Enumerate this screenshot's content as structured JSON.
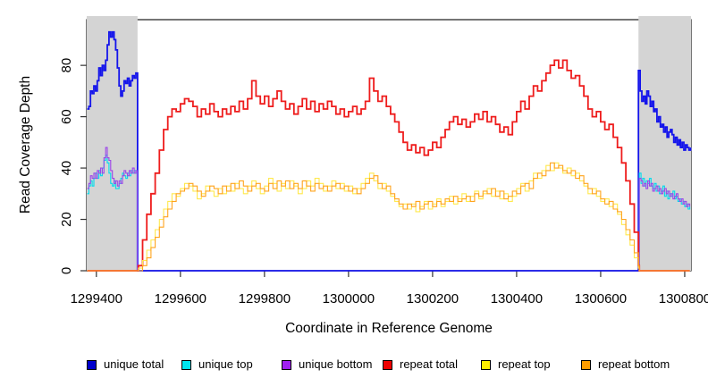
{
  "chart_data": {
    "type": "line",
    "style": "step-coverage-plot",
    "xlabel": "Coordinate in Reference Genome",
    "ylabel": "Read Coverage Depth",
    "xlim": [
      1299377,
      1300815
    ],
    "ylim": [
      0,
      97.8
    ],
    "xticks": [
      1299400,
      1299600,
      1299800,
      1300000,
      1300200,
      1300400,
      1300600,
      1300800
    ],
    "yticks": [
      0,
      20,
      40,
      60,
      80
    ],
    "grid": false,
    "background_color": "#ffffff",
    "shaded_region_color": "#d4d4d4",
    "shaded_regions": [
      {
        "x0": 1299377,
        "x1": 1299498
      },
      {
        "x0": 1300690,
        "x1": 1300815
      }
    ],
    "legend_position": "bottom",
    "legend": [
      {
        "label": "unique total",
        "color": "#0000cc"
      },
      {
        "label": "unique top",
        "color": "#00e5ee"
      },
      {
        "label": "unique bottom",
        "color": "#a020f0"
      },
      {
        "label": "repeat total",
        "color": "#ee0000"
      },
      {
        "label": "repeat top",
        "color": "#ffee00"
      },
      {
        "label": "repeat bottom",
        "color": "#ff9d00"
      }
    ],
    "series": [
      {
        "name": "unique total",
        "color": "#1414eb",
        "lw": 1.8,
        "parts": [
          [
            {
              "x0": 1299378,
              "dx": 4,
              "v": [
                63,
                64,
                70,
                69,
                72,
                70,
                74,
                79,
                76,
                80,
                78,
                82,
                88,
                93,
                91,
                93,
                90,
                86,
                79,
                72,
                68,
                70,
                74,
                73,
                75,
                72,
                74,
                76,
                75,
                77
              ]
            },
            {
              "x0": 1299498,
              "dx": 1190,
              "v": [
                0,
                0
              ]
            },
            {
              "x0": 1300690,
              "dx": 4,
              "v": [
                78,
                70,
                66,
                68,
                65,
                70,
                68,
                64,
                66,
                62,
                63,
                58,
                60,
                56,
                57,
                54,
                56,
                52,
                54,
                55,
                53,
                50,
                52,
                49,
                51,
                48,
                50,
                47,
                49,
                48,
                47,
                48
              ]
            }
          ]
        ]
      },
      {
        "name": "unique top",
        "color": "#00dcec",
        "lw": 1.1,
        "parts": [
          [
            {
              "x0": 1299378,
              "dx": 4,
              "v": [
                30,
                33,
                35,
                33,
                36,
                38,
                36,
                39,
                37,
                40,
                43,
                45,
                42,
                38,
                34,
                33,
                35,
                32,
                32,
                34,
                36,
                38,
                37,
                36,
                38,
                37,
                39,
                38,
                39,
                38
              ]
            },
            {
              "x0": 1299497,
              "dx": 1,
              "v": [
                0
              ]
            }
          ],
          [
            {
              "x0": 1300690,
              "dx": 1,
              "v": [
                0
              ]
            },
            {
              "x0": 1300692,
              "dx": 4,
              "v": [
                38,
                34,
                36,
                33,
                35,
                34,
                36,
                33,
                32,
                34,
                31,
                33,
                30,
                31,
                33,
                29,
                31,
                28,
                30,
                29,
                31,
                28,
                29,
                27,
                28,
                26,
                27,
                25,
                26,
                24,
                25
              ]
            }
          ]
        ]
      },
      {
        "name": "unique bottom",
        "color": "#9b45e8",
        "lw": 1.1,
        "parts": [
          [
            {
              "x0": 1299378,
              "dx": 4,
              "v": [
                32,
                34,
                37,
                36,
                38,
                36,
                39,
                38,
                40,
                38,
                44,
                48,
                44,
                43,
                39,
                36,
                34,
                35,
                33,
                35,
                34,
                37,
                39,
                38,
                37,
                39,
                38,
                40,
                38,
                39
              ]
            },
            {
              "x0": 1299497,
              "dx": 1,
              "v": [
                0
              ]
            }
          ],
          [
            {
              "x0": 1300690,
              "dx": 1,
              "v": [
                0
              ]
            },
            {
              "x0": 1300692,
              "dx": 4,
              "v": [
                36,
                35,
                33,
                34,
                32,
                35,
                33,
                34,
                31,
                32,
                33,
                31,
                32,
                30,
                31,
                32,
                30,
                31,
                29,
                30,
                28,
                29,
                30,
                28,
                27,
                28,
                26,
                27,
                25,
                26,
                25
              ]
            }
          ]
        ]
      },
      {
        "name": "repeat total",
        "color": "#ee1c1c",
        "lw": 1.8,
        "parts": [
          [
            {
              "x0": 1299378,
              "dx": 118,
              "v": [
                0,
                0
              ]
            },
            {
              "x0": 1299500,
              "dx": 10,
              "v": [
                2,
                12,
                22,
                30,
                38,
                47,
                55,
                60,
                63,
                62,
                65,
                67,
                66,
                64,
                60,
                63,
                61,
                65,
                62,
                60,
                63,
                61,
                64,
                62,
                66,
                63,
                67,
                74,
                68,
                65,
                68,
                64,
                67,
                70,
                66,
                63,
                65,
                61,
                64,
                67,
                63,
                66,
                62,
                65,
                63,
                66,
                64,
                61,
                63,
                60,
                62,
                64,
                61,
                63,
                66,
                75,
                70,
                66,
                68,
                64,
                61,
                58,
                54,
                50,
                47,
                49,
                46,
                48,
                45,
                47,
                50,
                48,
                52,
                55,
                58,
                60,
                57,
                59,
                56,
                58,
                61,
                59,
                62,
                58,
                60,
                57,
                54,
                56,
                53,
                58,
                62,
                66,
                63,
                68,
                72,
                70,
                74,
                77,
                80,
                82,
                79,
                82,
                78,
                75,
                76,
                72,
                68,
                63,
                60,
                62,
                58,
                55,
                57,
                52,
                48,
                42,
                35,
                26,
                15,
                2
              ]
            },
            {
              "x0": 1300692,
              "dx": 120,
              "v": [
                0,
                0
              ]
            }
          ]
        ]
      },
      {
        "name": "repeat top",
        "color": "#ffe94d",
        "lw": 1.1,
        "parts": [
          [
            {
              "x0": 1299378,
              "dx": 118,
              "v": [
                0,
                0
              ]
            },
            {
              "x0": 1299500,
              "dx": 10,
              "v": [
                1,
                4,
                8,
                12,
                16,
                20,
                24,
                27,
                30,
                29,
                32,
                34,
                33,
                31,
                28,
                30,
                33,
                31,
                29,
                32,
                30,
                33,
                31,
                34,
                32,
                30,
                33,
                35,
                32,
                30,
                33,
                36,
                34,
                31,
                34,
                32,
                35,
                33,
                30,
                32,
                35,
                33,
                36,
                34,
                31,
                33,
                35,
                32,
                34,
                31,
                33,
                30,
                32,
                34,
                36,
                38,
                35,
                32,
                34,
                31,
                29,
                27,
                25,
                26,
                24,
                26,
                23,
                25,
                27,
                24,
                26,
                28,
                25,
                27,
                29,
                26,
                28,
                30,
                27,
                29,
                31,
                28,
                30,
                32,
                29,
                31,
                28,
                30,
                27,
                29,
                32,
                34,
                31,
                35,
                38,
                36,
                39,
                41,
                39,
                42,
                40,
                38,
                40,
                37,
                38,
                35,
                33,
                30,
                32,
                29,
                27,
                28,
                25,
                26,
                22,
                18,
                14,
                10,
                5,
                1
              ]
            },
            {
              "x0": 1300692,
              "dx": 120,
              "v": [
                0,
                0
              ]
            }
          ]
        ]
      },
      {
        "name": "repeat bottom",
        "color": "#ffa41e",
        "lw": 1.1,
        "parts": [
          [
            {
              "x0": 1299378,
              "dx": 118,
              "v": [
                0,
                0
              ]
            },
            {
              "x0": 1299500,
              "dx": 10,
              "v": [
                0,
                2,
                5,
                9,
                13,
                17,
                21,
                24,
                27,
                30,
                31,
                32,
                34,
                33,
                31,
                29,
                31,
                33,
                32,
                30,
                33,
                31,
                34,
                32,
                35,
                33,
                31,
                33,
                34,
                32,
                31,
                34,
                32,
                35,
                33,
                35,
                32,
                34,
                32,
                35,
                33,
                31,
                34,
                32,
                33,
                31,
                33,
                34,
                32,
                33,
                31,
                32,
                30,
                32,
                34,
                36,
                37,
                34,
                32,
                33,
                30,
                28,
                26,
                24,
                26,
                25,
                27,
                24,
                26,
                27,
                25,
                27,
                26,
                28,
                27,
                29,
                27,
                28,
                29,
                27,
                30,
                29,
                31,
                30,
                32,
                29,
                31,
                28,
                29,
                31,
                30,
                33,
                34,
                32,
                36,
                38,
                37,
                39,
                42,
                40,
                41,
                39,
                38,
                39,
                36,
                37,
                34,
                32,
                30,
                31,
                28,
                26,
                27,
                24,
                23,
                20,
                16,
                12,
                7,
                2
              ]
            },
            {
              "x0": 1300692,
              "dx": 120,
              "v": [
                0,
                0
              ]
            }
          ]
        ]
      }
    ]
  }
}
